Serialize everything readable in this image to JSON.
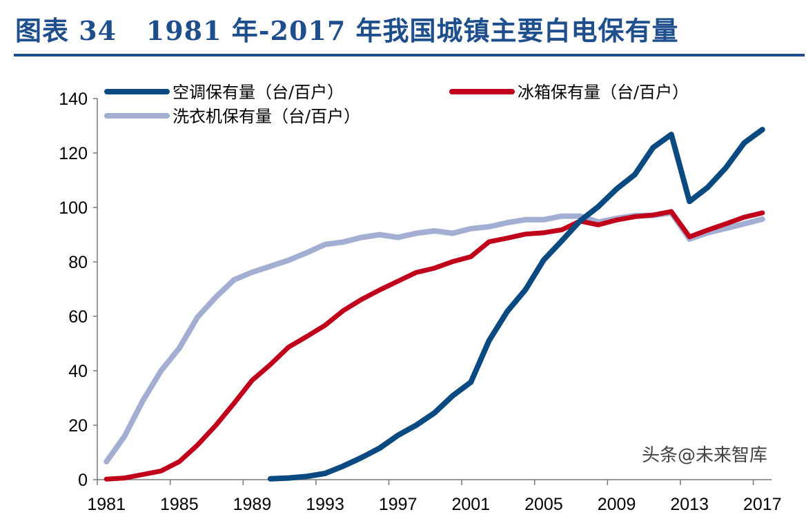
{
  "header": {
    "title": "图表 34   1981 年-2017 年我国城镇主要白电保有量"
  },
  "watermark": "头条@未来智库",
  "chart_data": {
    "type": "line",
    "title": "",
    "xlabel": "",
    "ylabel": "",
    "x": [
      1981,
      1982,
      1983,
      1984,
      1985,
      1986,
      1987,
      1988,
      1989,
      1990,
      1991,
      1992,
      1993,
      1994,
      1995,
      1996,
      1997,
      1998,
      1999,
      2000,
      2001,
      2002,
      2003,
      2004,
      2005,
      2006,
      2007,
      2008,
      2009,
      2010,
      2011,
      2012,
      2013,
      2014,
      2015,
      2016,
      2017
    ],
    "x_tick_labels": [
      "1981",
      "1985",
      "1989",
      "1993",
      "1997",
      "2001",
      "2005",
      "2009",
      "2013",
      "2017"
    ],
    "ylim": [
      0,
      140
    ],
    "y_ticks": [
      0,
      20,
      40,
      60,
      80,
      100,
      120,
      140
    ],
    "grid": false,
    "legend_placement": "top",
    "series": [
      {
        "name": "空调保有量（台/百户）",
        "color": "#0a4a80",
        "values": [
          null,
          null,
          null,
          null,
          null,
          null,
          null,
          null,
          null,
          0.3,
          0.6,
          1.2,
          2.3,
          5.0,
          8.1,
          11.6,
          16.3,
          20.0,
          24.5,
          30.8,
          35.8,
          51.1,
          61.8,
          69.8,
          80.7,
          87.8,
          95.1,
          100.3,
          106.8,
          112.1,
          122.0,
          126.8,
          102.2,
          107.4,
          114.6,
          123.7,
          128.6
        ]
      },
      {
        "name": "冰箱保有量（台/百户）",
        "color": "#c0001a",
        "values": [
          0.2,
          0.6,
          1.9,
          3.2,
          6.6,
          12.7,
          19.9,
          28.0,
          36.5,
          42.3,
          48.7,
          52.6,
          56.7,
          62.1,
          66.2,
          69.7,
          72.9,
          76.1,
          77.7,
          80.1,
          81.9,
          87.4,
          88.7,
          90.2,
          90.7,
          91.8,
          95.0,
          93.6,
          95.4,
          96.6,
          97.2,
          98.5,
          89.2,
          91.7,
          94.0,
          96.4,
          98.0
        ]
      },
      {
        "name": "洗衣机保有量（台/百户）",
        "color": "#a3aed3",
        "values": [
          6.6,
          16.0,
          29.0,
          40.0,
          48.3,
          59.7,
          67.0,
          73.4,
          76.2,
          78.4,
          80.6,
          83.4,
          86.4,
          87.3,
          89.0,
          90.0,
          89.0,
          90.5,
          91.4,
          90.5,
          92.2,
          92.9,
          94.4,
          95.5,
          95.5,
          96.8,
          96.8,
          94.6,
          96.0,
          97.0,
          97.1,
          98.0,
          88.4,
          90.7,
          92.3,
          94.0,
          95.7
        ]
      }
    ]
  }
}
